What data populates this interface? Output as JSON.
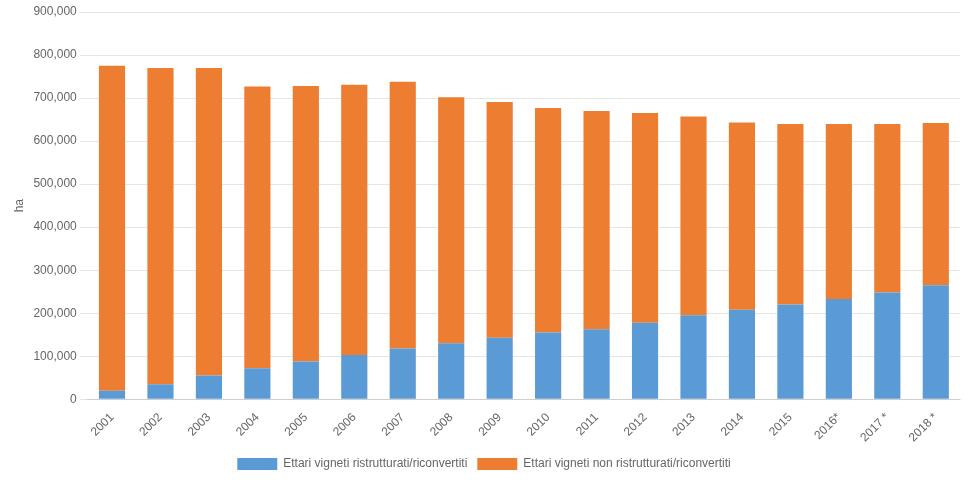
{
  "chart_data": {
    "type": "bar",
    "stacked": true,
    "categories": [
      "2001",
      "2002",
      "2003",
      "2004",
      "2005",
      "2006",
      "2007",
      "2008",
      "2009",
      "2010",
      "2011",
      "2012",
      "2013",
      "2014",
      "2015",
      "2016*",
      "2017 *",
      "2018 *"
    ],
    "series": [
      {
        "name": "Ettari vigneti ristrutturati/riconvertiti",
        "color": "#5B9BD5",
        "values": [
          20000,
          35000,
          55000,
          72000,
          88000,
          103000,
          118000,
          130000,
          143000,
          155000,
          163000,
          178000,
          195000,
          208000,
          220000,
          233000,
          248000,
          265000
        ]
      },
      {
        "name": "Ettari vigneti non ristrutturati/riconvertiti",
        "color": "#ED7D31",
        "values": [
          755000,
          735000,
          715000,
          655000,
          640000,
          628000,
          620000,
          572000,
          548000,
          522000,
          507000,
          487000,
          462000,
          435000,
          420000,
          407000,
          392000,
          377000
        ]
      }
    ],
    "ylabel": "ha",
    "ylim": [
      0,
      900000
    ],
    "yticks": [
      0,
      {
        "value": 100000,
        "label": "100,000"
      },
      {
        "value": 200000,
        "label": "200,000"
      },
      {
        "value": 300000,
        "label": "300,000"
      },
      {
        "value": 400000,
        "label": "400,000"
      },
      {
        "value": 500000,
        "label": "500,000"
      },
      {
        "value": 600000,
        "label": "600,000"
      },
      {
        "value": 700000,
        "label": "700,000"
      },
      {
        "value": 800000,
        "label": "800,000"
      },
      {
        "value": 900000,
        "label": "900,000"
      }
    ],
    "grid": true,
    "legend": "bottom"
  }
}
